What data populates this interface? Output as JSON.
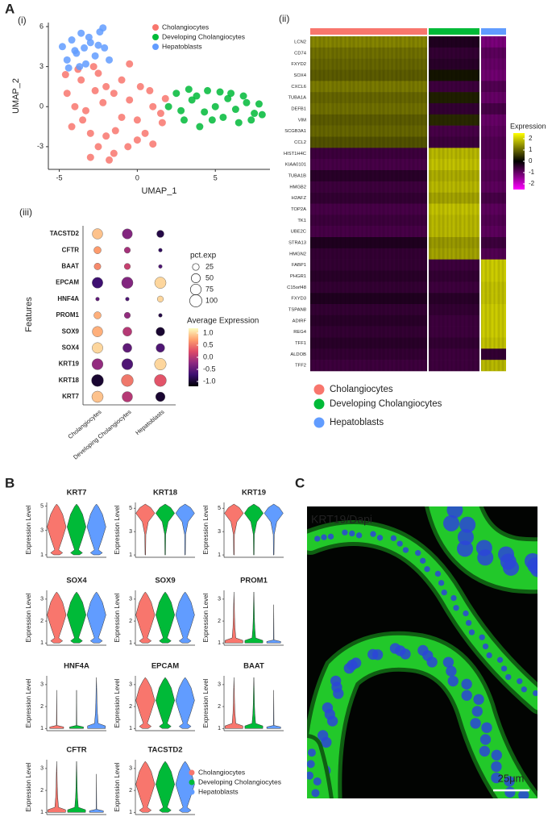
{
  "panel_labels": {
    "A": "A",
    "i": "(i)",
    "ii": "(ii)",
    "iii": "(iii)",
    "B": "B",
    "C": "C"
  },
  "chart_data": [
    {
      "type": "scatter",
      "x_label": "UMAP_1",
      "y_label": "UMAP_2",
      "xlim": [
        -5.7,
        8.5
      ],
      "ylim": [
        -4.7,
        6.3
      ],
      "xticks": [
        -5,
        0,
        5
      ],
      "yticks": [
        -3,
        0,
        3,
        6
      ],
      "series": [
        {
          "name": "Cholangiocytes",
          "color": "#f8766d",
          "x": [
            -4.5,
            -4,
            -3.5,
            -3,
            -2.5,
            -2,
            -1.5,
            -1,
            -0.5,
            0,
            0.5,
            1,
            1.5,
            -4.2,
            -3.6,
            -2.8,
            -2.2,
            -1.4,
            -0.6,
            0.2,
            1,
            1.8,
            -3.8,
            -3,
            -2,
            -1,
            0,
            -2.5,
            -1.5,
            -0.5,
            -3.3,
            -2.7,
            -4.6,
            0.8,
            1.6,
            -1.8
          ],
          "y": [
            1,
            0,
            -1,
            -2,
            -3,
            1.5,
            -3.5,
            2,
            0.5,
            -1,
            -2,
            0,
            -0.5,
            -1.5,
            2,
            3,
            0.3,
            -1.8,
            -3,
            1.5,
            -2.8,
            0.6,
            2.8,
            -3.8,
            -2.2,
            -0.8,
            -2.5,
            2.5,
            1,
            3.2,
            -0.3,
            1.2,
            2.4,
            1.2,
            -1.2,
            -4
          ]
        },
        {
          "name": "Developing Cholangiocytes",
          "color": "#00ba38",
          "x": [
            2,
            2.5,
            3,
            3.5,
            4,
            4.5,
            5,
            5.5,
            6,
            6.5,
            7,
            7.5,
            8,
            2.8,
            3.8,
            4.8,
            5.8,
            6.8,
            7.8,
            3.3,
            4.3,
            5.3,
            6.3,
            7.3
          ],
          "y": [
            0,
            1,
            -1,
            0.5,
            -1.5,
            1.2,
            0,
            -0.8,
            1,
            -1.2,
            0.3,
            -0.5,
            -0.6,
            -0.3,
            0.8,
            -1,
            0.6,
            0.8,
            0.2,
            1.3,
            -0.4,
            1.1,
            -0.2,
            -1
          ]
        },
        {
          "name": "Hepatoblasts",
          "color": "#619cff",
          "x": [
            -4.8,
            -4.5,
            -4.2,
            -3.9,
            -3.6,
            -3.3,
            -3,
            -2.7,
            -2.4,
            -2.1,
            -1.8,
            -4.4,
            -3.7,
            -3.1,
            -2.5,
            -2.2,
            -4,
            -3.4
          ],
          "y": [
            4.5,
            3.5,
            5,
            4,
            5.5,
            3.2,
            4.8,
            3.8,
            5.6,
            4.4,
            3.5,
            2.9,
            3,
            5.2,
            4.6,
            5.9,
            4.2,
            4.4
          ]
        }
      ]
    },
    {
      "type": "heatmap",
      "colorbar_title": "Expression",
      "clim": [
        -2.5,
        2.5
      ],
      "colorbar_ticks": [
        2,
        1,
        0,
        -1,
        -2
      ],
      "groups": [
        {
          "name": "Cholangiocytes",
          "color": "#f8766d"
        },
        {
          "name": "Developing Cholangiocytes",
          "color": "#00ba38"
        },
        {
          "name": "Hepatoblasts",
          "color": "#619cff"
        }
      ],
      "genes": [
        "LCN2",
        "CD74",
        "FXYD2",
        "SOX4",
        "CXCL6",
        "TUBA1A",
        "DEFB1",
        "VIM",
        "SCGB3A1",
        "CCL2",
        "HIST1H4C",
        "KIAA0101",
        "TUBA1B",
        "HMGB2",
        "H2AFZ",
        "TOP2A",
        "TK1",
        "UBE2C",
        "STRA13",
        "HMGN2",
        "FABP1",
        "PHGR1",
        "C15orf48",
        "FXYD3",
        "TSPAN8",
        "ADIRF",
        "REG4",
        "TFF1",
        "ALDOB",
        "TFF2"
      ],
      "values": [
        [
          1.3,
          -0.3,
          -1.2
        ],
        [
          1.1,
          -0.5,
          -0.9
        ],
        [
          1.0,
          -0.4,
          -1.0
        ],
        [
          0.9,
          0.2,
          -1.1
        ],
        [
          1.2,
          -0.6,
          -0.8
        ],
        [
          1.0,
          0.3,
          -1.0
        ],
        [
          1.1,
          -0.5,
          -0.7
        ],
        [
          0.9,
          0.4,
          -1.0
        ],
        [
          1.0,
          -0.7,
          -0.9
        ],
        [
          0.8,
          -0.6,
          -0.8
        ],
        [
          -0.6,
          1.8,
          -0.8
        ],
        [
          -0.7,
          1.9,
          -0.9
        ],
        [
          -0.4,
          1.7,
          -0.8
        ],
        [
          -0.6,
          1.8,
          -0.9
        ],
        [
          -0.5,
          1.6,
          -0.7
        ],
        [
          -0.7,
          1.9,
          -0.9
        ],
        [
          -0.6,
          1.8,
          -0.8
        ],
        [
          -0.7,
          1.8,
          -0.9
        ],
        [
          -0.3,
          1.5,
          -0.6
        ],
        [
          -0.5,
          1.6,
          -0.8
        ],
        [
          -0.5,
          -0.6,
          2.0
        ],
        [
          -0.4,
          -0.5,
          2.0
        ],
        [
          -0.5,
          -0.6,
          1.9
        ],
        [
          -0.3,
          -0.4,
          1.9
        ],
        [
          -0.5,
          -0.5,
          2.0
        ],
        [
          -0.4,
          -0.6,
          2.0
        ],
        [
          -0.5,
          -0.6,
          2.0
        ],
        [
          -0.4,
          -0.5,
          1.9
        ],
        [
          -0.5,
          -0.6,
          -0.5
        ],
        [
          -0.6,
          -0.6,
          1.8
        ]
      ]
    },
    {
      "type": "dot",
      "y_label": "Features",
      "features": [
        "TACSTD2",
        "CFTR",
        "BAAT",
        "EPCAM",
        "HNF4A",
        "PROM1",
        "SOX9",
        "SOX4",
        "KRT19",
        "KRT18",
        "KRT7"
      ],
      "groups": [
        "Cholangiocytes",
        "Developing Cholangiocytes",
        "Hepatoblasts"
      ],
      "pct": [
        [
          70,
          65,
          30
        ],
        [
          30,
          20,
          5
        ],
        [
          25,
          20,
          5
        ],
        [
          75,
          85,
          85
        ],
        [
          5,
          5,
          20
        ],
        [
          30,
          20,
          5
        ],
        [
          70,
          50,
          45
        ],
        [
          75,
          50,
          45
        ],
        [
          80,
          80,
          90
        ],
        [
          95,
          95,
          95
        ],
        [
          85,
          70,
          55
        ]
      ],
      "avg": [
        [
          0.9,
          -0.3,
          -0.9
        ],
        [
          0.7,
          -0.1,
          -0.8
        ],
        [
          0.6,
          0.1,
          -0.6
        ],
        [
          -0.7,
          -0.3,
          1.0
        ],
        [
          -0.5,
          -0.6,
          1.0
        ],
        [
          0.8,
          -0.2,
          -0.9
        ],
        [
          0.8,
          0.0,
          -1.0
        ],
        [
          1.0,
          -0.5,
          -0.6
        ],
        [
          -0.2,
          -0.6,
          1.0
        ],
        [
          -1.0,
          0.5,
          0.3
        ],
        [
          0.9,
          0.0,
          -1.0
        ]
      ],
      "size_legend": {
        "title": "pct.exp",
        "values": [
          25,
          50,
          75,
          100
        ]
      },
      "color_legend": {
        "title": "Average Expression",
        "clim": [
          -1.2,
          1.2
        ],
        "ticks": [
          {
            "value": 1.0,
            "label": "1.0"
          },
          0.5,
          {
            "value": 0.0,
            "label": "0.0"
          },
          -0.5,
          {
            "value": -1.0,
            "label": "-1.0"
          }
        ]
      }
    }
  ],
  "violin_panel": {
    "y_label": "Expression Level",
    "panels": [
      {
        "title": "KRT7",
        "ylim": [
          0.8,
          5.3
        ],
        "yticks": [
          1,
          3,
          5
        ]
      },
      {
        "title": "KRT18",
        "ylim": [
          0.8,
          5.5
        ],
        "yticks": [
          1,
          3,
          5
        ]
      },
      {
        "title": "KRT19",
        "ylim": [
          0.8,
          5.5
        ],
        "yticks": [
          1,
          3,
          5
        ]
      },
      {
        "title": "SOX4",
        "ylim": [
          0.9,
          3.4
        ],
        "yticks": [
          1,
          2,
          3
        ]
      },
      {
        "title": "SOX9",
        "ylim": [
          0.9,
          3.4
        ],
        "yticks": [
          1,
          2,
          3
        ]
      },
      {
        "title": "PROM1",
        "ylim": [
          0.9,
          3.4
        ],
        "yticks": [
          1,
          2,
          3
        ]
      },
      {
        "title": "HNF4A",
        "ylim": [
          0.9,
          3.4
        ],
        "yticks": [
          1,
          2,
          3
        ]
      },
      {
        "title": "EPCAM",
        "ylim": [
          0.9,
          3.4
        ],
        "yticks": [
          1,
          2,
          3
        ]
      },
      {
        "title": "BAAT",
        "ylim": [
          0.9,
          3.4
        ],
        "yticks": [
          1,
          2,
          3
        ]
      },
      {
        "title": "CFTR",
        "ylim": [
          0.9,
          3.4
        ],
        "yticks": [
          1,
          2,
          3
        ]
      },
      {
        "title": "TACSTD2",
        "ylim": [
          0.9,
          3.4
        ],
        "yticks": [
          1,
          2,
          3
        ]
      }
    ],
    "legend": [
      {
        "name": "Cholangiocytes",
        "color": "#f8766d"
      },
      {
        "name": "Developing Cholangiocytes",
        "color": "#00ba38"
      },
      {
        "name": "Hepatoblasts",
        "color": "#619cff"
      }
    ]
  },
  "image_panel": {
    "stain": [
      "KRT19",
      "/",
      "Dapi"
    ],
    "stain_colors": [
      "#22dd22",
      "#ffffff",
      "#3a8cff"
    ],
    "scale_bar": "25μm"
  }
}
